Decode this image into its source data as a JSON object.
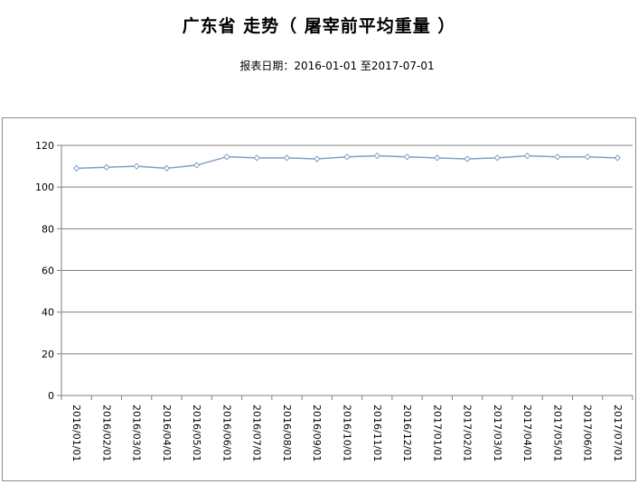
{
  "header": {
    "title": "广东省 走势（ 屠宰前平均重量 ）",
    "subtitle": "报表日期：2016-01-01 至2017-07-01"
  },
  "chart_data": {
    "type": "line",
    "title": "广东省 走势（ 屠宰前平均重量 ）",
    "subtitle": "报表日期：2016-01-01 至2017-07-01",
    "xlabel": "",
    "ylabel": "",
    "ylim": [
      0,
      120
    ],
    "yticks": [
      0,
      20,
      40,
      60,
      80,
      100,
      120
    ],
    "grid": true,
    "legend": "none",
    "line_color": "#7f9ec9",
    "categories": [
      "2016/01/01",
      "2016/02/01",
      "2016/03/01",
      "2016/04/01",
      "2016/05/01",
      "2016/06/01",
      "2016/07/01",
      "2016/08/01",
      "2016/09/01",
      "2016/10/01",
      "2016/11/01",
      "2016/12/01",
      "2017/01/01",
      "2017/02/01",
      "2017/03/01",
      "2017/04/01",
      "2017/05/01",
      "2017/06/01",
      "2017/07/01"
    ],
    "series": [
      {
        "values": [
          109,
          109.5,
          110,
          109,
          110.5,
          114.5,
          114,
          114,
          113.5,
          114.5,
          115,
          114.5,
          114,
          113.5,
          114,
          115,
          114.5,
          114.5,
          114
        ]
      }
    ]
  }
}
